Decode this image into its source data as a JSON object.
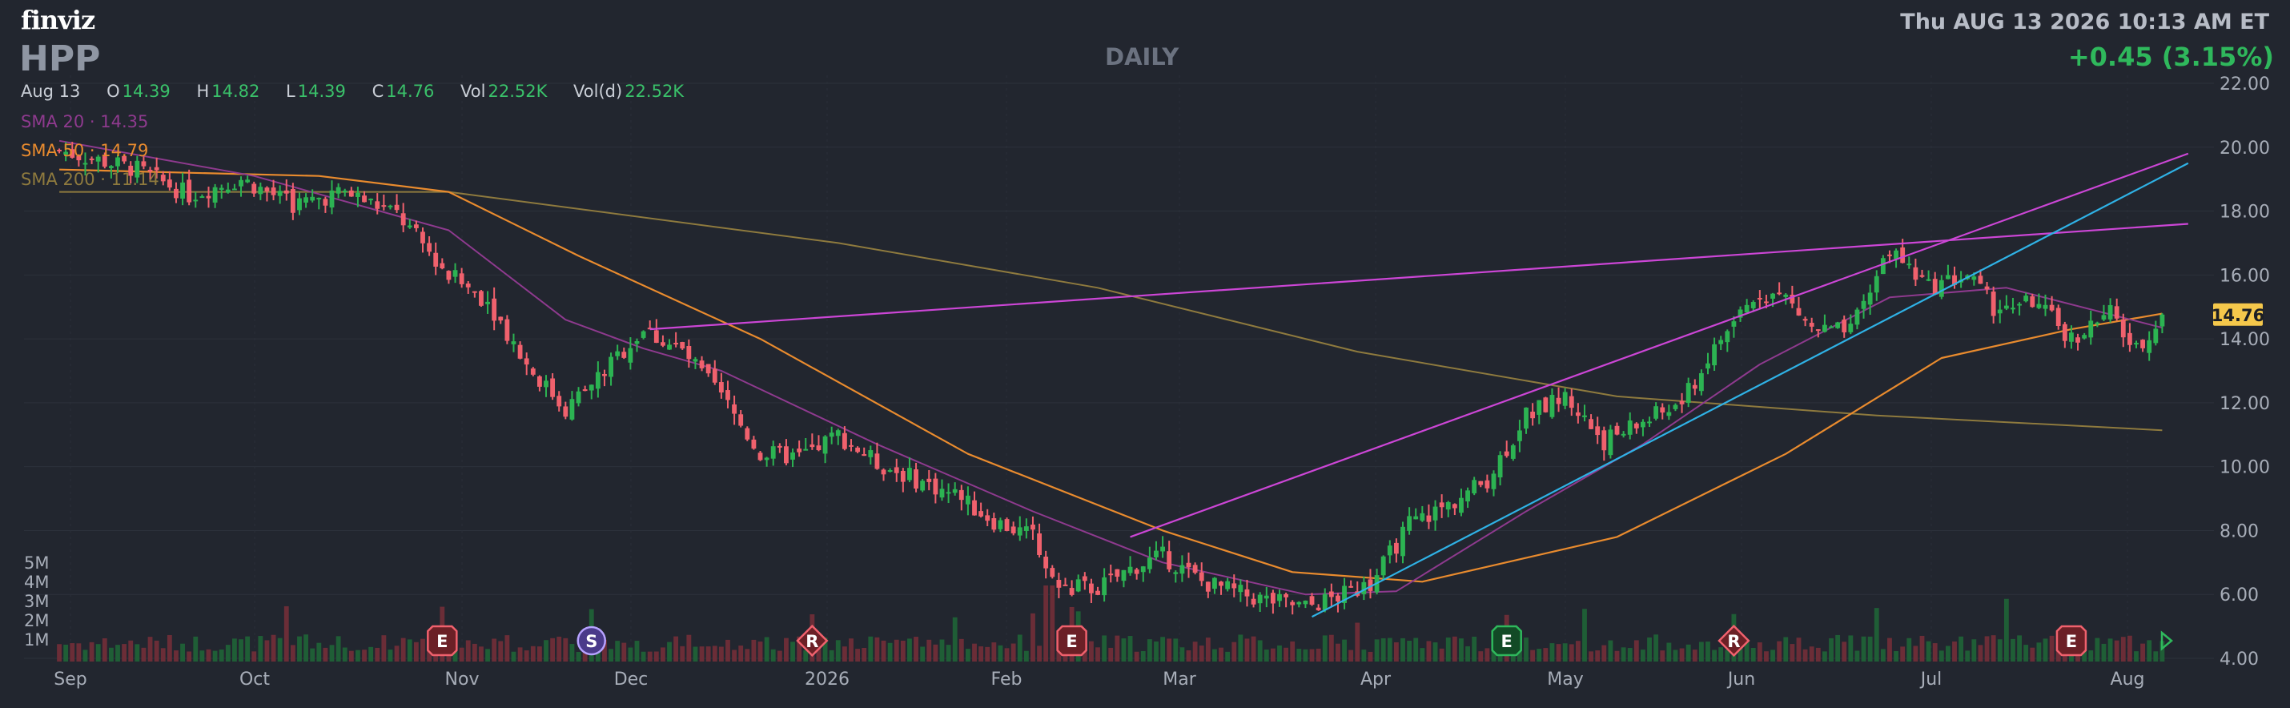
{
  "header": {
    "logo": "finviz",
    "ticker": "HPP",
    "timeframe": "DAILY",
    "datetime": "Thu AUG 13 2026 10:13 AM ET",
    "change": "+0.45 (3.15%)"
  },
  "ohlc": {
    "date": "Aug 13",
    "open_label": "O",
    "open": "14.39",
    "high_label": "H",
    "high": "14.82",
    "low_label": "L",
    "low": "14.39",
    "close_label": "C",
    "close": "14.76",
    "vol_label": "Vol",
    "vol": "22.52K",
    "vold_label": "Vol(d)",
    "vold": "22.52K"
  },
  "indicators": {
    "sma20": {
      "label": "SMA 20",
      "value": "14.35",
      "color": "#8e3a8e"
    },
    "sma50": {
      "label": "SMA 50",
      "value": "14.79",
      "color": "#e98b2e"
    },
    "sma200": {
      "label": "SMA 200",
      "value": "11.14",
      "color": "#8e7a3e"
    }
  },
  "chart_data": {
    "type": "candlestick",
    "y_axis": {
      "ticks": [
        "22.00",
        "20.00",
        "18.00",
        "16.00",
        "14.00",
        "12.00",
        "10.00",
        "8.00",
        "6.00",
        "4.00"
      ],
      "range": [
        4,
        22
      ]
    },
    "x_axis": {
      "ticks": [
        "Sep",
        "Oct",
        "Nov",
        "Dec",
        "2026",
        "Feb",
        "Mar",
        "Apr",
        "May",
        "Jun",
        "Jul",
        "Aug"
      ]
    },
    "volume_axis": {
      "ticks": [
        "5M",
        "4M",
        "3M",
        "2M",
        "1M"
      ]
    },
    "last_price_label": "14.76",
    "colors": {
      "up": "#2cb352",
      "down": "#f0616d",
      "vol_up": "#1f5e36",
      "vol_down": "#6b2d37",
      "trend_magenta": "#cc46d6",
      "trend_blue": "#2fb2e6",
      "last_price_bg": "#f5c84b"
    },
    "price_anchors": [
      {
        "t": 0,
        "p": 19.9
      },
      {
        "t": 12,
        "p": 19.3
      },
      {
        "t": 20,
        "p": 18.5
      },
      {
        "t": 28,
        "p": 19.0
      },
      {
        "t": 36,
        "p": 18.2
      },
      {
        "t": 44,
        "p": 18.6
      },
      {
        "t": 52,
        "p": 17.9
      },
      {
        "t": 60,
        "p": 16.0
      },
      {
        "t": 66,
        "p": 15.2
      },
      {
        "t": 72,
        "p": 13.2
      },
      {
        "t": 78,
        "p": 11.8
      },
      {
        "t": 84,
        "p": 13.0
      },
      {
        "t": 90,
        "p": 14.3
      },
      {
        "t": 96,
        "p": 13.6
      },
      {
        "t": 102,
        "p": 12.2
      },
      {
        "t": 108,
        "p": 10.4
      },
      {
        "t": 114,
        "p": 10.3
      },
      {
        "t": 120,
        "p": 11.0
      },
      {
        "t": 126,
        "p": 10.1
      },
      {
        "t": 132,
        "p": 9.6
      },
      {
        "t": 138,
        "p": 9.1
      },
      {
        "t": 144,
        "p": 8.3
      },
      {
        "t": 150,
        "p": 7.8
      },
      {
        "t": 154,
        "p": 6.2
      },
      {
        "t": 160,
        "p": 6.2
      },
      {
        "t": 166,
        "p": 6.9
      },
      {
        "t": 170,
        "p": 7.2
      },
      {
        "t": 176,
        "p": 6.4
      },
      {
        "t": 184,
        "p": 5.9
      },
      {
        "t": 192,
        "p": 5.6
      },
      {
        "t": 198,
        "p": 6.0
      },
      {
        "t": 202,
        "p": 6.3
      },
      {
        "t": 208,
        "p": 8.2
      },
      {
        "t": 214,
        "p": 8.8
      },
      {
        "t": 220,
        "p": 9.6
      },
      {
        "t": 226,
        "p": 11.6
      },
      {
        "t": 232,
        "p": 12.2
      },
      {
        "t": 238,
        "p": 10.8
      },
      {
        "t": 244,
        "p": 11.4
      },
      {
        "t": 250,
        "p": 12.0
      },
      {
        "t": 256,
        "p": 14.0
      },
      {
        "t": 262,
        "p": 15.5
      },
      {
        "t": 266,
        "p": 15.3
      },
      {
        "t": 270,
        "p": 14.3
      },
      {
        "t": 276,
        "p": 14.2
      },
      {
        "t": 282,
        "p": 16.8
      },
      {
        "t": 288,
        "p": 15.6
      },
      {
        "t": 294,
        "p": 16.0
      },
      {
        "t": 298,
        "p": 15.0
      },
      {
        "t": 304,
        "p": 15.2
      },
      {
        "t": 310,
        "p": 14.0
      },
      {
        "t": 316,
        "p": 14.8
      },
      {
        "t": 320,
        "p": 13.6
      },
      {
        "t": 324,
        "p": 14.76
      }
    ],
    "sma20_points": [
      {
        "t": 0,
        "p": 20.2
      },
      {
        "t": 30,
        "p": 19.1
      },
      {
        "t": 60,
        "p": 17.4
      },
      {
        "t": 78,
        "p": 14.6
      },
      {
        "t": 90,
        "p": 13.7
      },
      {
        "t": 102,
        "p": 13.0
      },
      {
        "t": 126,
        "p": 10.7
      },
      {
        "t": 150,
        "p": 8.6
      },
      {
        "t": 170,
        "p": 7.0
      },
      {
        "t": 192,
        "p": 6.0
      },
      {
        "t": 206,
        "p": 6.1
      },
      {
        "t": 226,
        "p": 8.6
      },
      {
        "t": 244,
        "p": 10.7
      },
      {
        "t": 262,
        "p": 13.2
      },
      {
        "t": 282,
        "p": 15.3
      },
      {
        "t": 300,
        "p": 15.6
      },
      {
        "t": 324,
        "p": 14.35
      }
    ],
    "sma50_points": [
      {
        "t": 0,
        "p": 19.3
      },
      {
        "t": 40,
        "p": 19.1
      },
      {
        "t": 60,
        "p": 18.6
      },
      {
        "t": 80,
        "p": 16.6
      },
      {
        "t": 108,
        "p": 14.0
      },
      {
        "t": 140,
        "p": 10.4
      },
      {
        "t": 170,
        "p": 8.0
      },
      {
        "t": 190,
        "p": 6.7
      },
      {
        "t": 210,
        "p": 6.4
      },
      {
        "t": 240,
        "p": 7.8
      },
      {
        "t": 266,
        "p": 10.4
      },
      {
        "t": 290,
        "p": 13.4
      },
      {
        "t": 310,
        "p": 14.3
      },
      {
        "t": 324,
        "p": 14.79
      }
    ],
    "sma200_points": [
      {
        "t": 0,
        "p": 18.6
      },
      {
        "t": 60,
        "p": 18.6
      },
      {
        "t": 120,
        "p": 17.0
      },
      {
        "t": 160,
        "p": 15.6
      },
      {
        "t": 200,
        "p": 13.6
      },
      {
        "t": 240,
        "p": 12.2
      },
      {
        "t": 280,
        "p": 11.6
      },
      {
        "t": 324,
        "p": 11.14
      }
    ],
    "trendlines": [
      {
        "name": "upper-resistance",
        "color": "magenta",
        "t1": 91,
        "p1": 14.3,
        "t2": 328,
        "p2": 17.6
      },
      {
        "name": "rising-upper",
        "color": "magenta",
        "t1": 165,
        "p1": 7.8,
        "t2": 328,
        "p2": 19.8
      },
      {
        "name": "rising-lower",
        "color": "blue",
        "t1": 193,
        "p1": 5.3,
        "t2": 328,
        "p2": 19.5
      }
    ],
    "event_markers": [
      {
        "t": 59,
        "letter": "E",
        "style": "earnings-down"
      },
      {
        "t": 82,
        "letter": "S",
        "style": "split"
      },
      {
        "t": 116,
        "letter": "R",
        "style": "rating-down"
      },
      {
        "t": 156,
        "letter": "E",
        "style": "earnings-down"
      },
      {
        "t": 223,
        "letter": "E",
        "style": "earnings-up"
      },
      {
        "t": 258,
        "letter": "R",
        "style": "rating-down"
      },
      {
        "t": 310,
        "letter": "E",
        "style": "earnings-down"
      }
    ]
  }
}
